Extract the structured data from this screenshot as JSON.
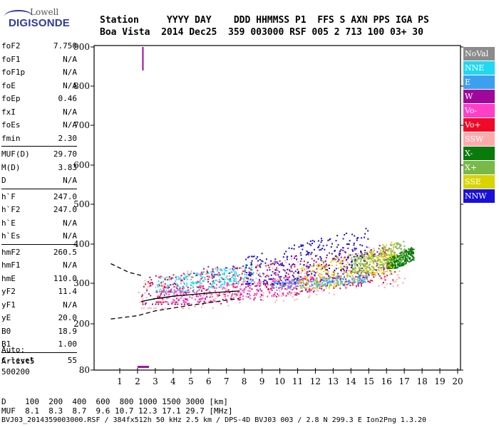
{
  "logo": {
    "line1": "Lowell",
    "line2": "DIGISONDE"
  },
  "header": {
    "line1": "Station     YYYY DAY    DDD HHMMSS P1  FFS S AXN PPS IGA PS",
    "line2": "Boa Vista  2014 Dec25  359 003000 RSF 005 2 713 100 03+ 30"
  },
  "params": {
    "group1": [
      {
        "name": "foF2",
        "value": "7.750"
      },
      {
        "name": "foF1",
        "value": "N/A"
      },
      {
        "name": "foF1p",
        "value": "N/A"
      },
      {
        "name": "foE",
        "value": "N/A"
      },
      {
        "name": "foEp",
        "value": "0.46"
      },
      {
        "name": "fxI",
        "value": "N/A"
      },
      {
        "name": "foEs",
        "value": "N/A"
      },
      {
        "name": "fmin",
        "value": "2.30"
      }
    ],
    "group2": [
      {
        "name": "MUF(D)",
        "value": "29.70"
      },
      {
        "name": "M(D)",
        "value": "3.83"
      },
      {
        "name": "D",
        "value": "N/A"
      }
    ],
    "group3": [
      {
        "name": "h`F",
        "value": "247.0"
      },
      {
        "name": "h`F2",
        "value": "247.0"
      },
      {
        "name": "h`E",
        "value": "N/A"
      },
      {
        "name": "h`Es",
        "value": "N/A"
      }
    ],
    "group4": [
      {
        "name": "hmF2",
        "value": "260.5"
      },
      {
        "name": "hmF1",
        "value": "N/A"
      },
      {
        "name": "hmE",
        "value": "110.0"
      },
      {
        "name": "yF2",
        "value": "11.4"
      },
      {
        "name": "yF1",
        "value": "N/A"
      },
      {
        "name": "yE",
        "value": "20.0"
      },
      {
        "name": "B0",
        "value": "18.9"
      },
      {
        "name": "B1",
        "value": "1.00"
      }
    ],
    "group5": [
      {
        "name": "C-level",
        "value": "55"
      }
    ]
  },
  "auto": {
    "line1": "Auto:",
    "line2": "Artist5",
    "line3": "500200"
  },
  "legend": [
    {
      "label": "NoVal",
      "color": "#8c8c8c"
    },
    {
      "label": "NNE",
      "color": "#22d8f0"
    },
    {
      "label": "E",
      "color": "#3d9ff0"
    },
    {
      "label": "W",
      "color": "#a0089c"
    },
    {
      "label": "Vo-",
      "color": "#ff3fc8"
    },
    {
      "label": "Vo+",
      "color": "#f00a28"
    },
    {
      "label": "SSW",
      "color": "#ffaaaa"
    },
    {
      "label": "X-",
      "color": "#0a7a0a"
    },
    {
      "label": "X+",
      "color": "#7ab84a"
    },
    {
      "label": "SSE",
      "color": "#d8d400"
    },
    {
      "label": "NNW",
      "color": "#1a10d8"
    }
  ],
  "footer": {
    "line1": "D    100  200  400  600  800 1000 1500 3000 [km]",
    "line2": "MUF  8.1  8.3  8.7  9.6 10.7 12.3 17.1 29.7 [MHz]",
    "line3": "BVJ03_2014359003000.RSF / 384fx512h 50 kHz 2.5 km / DPS-4D BVJ03 003 / 2.8 N 299.3 E Ion2Png 1.3.20"
  },
  "chart_data": {
    "type": "scatter",
    "xlim": [
      0.5,
      20
    ],
    "ylim": [
      80,
      900
    ],
    "x_ticks": [
      "1",
      "2",
      "3",
      "4",
      "5",
      "6",
      "7",
      "8",
      "9",
      "10",
      "11",
      "12",
      "13",
      "14",
      "15",
      "16",
      "17",
      "18",
      "19",
      "20"
    ],
    "y_ticks": [
      "80",
      "200",
      "300",
      "400",
      "500",
      "600",
      "700",
      "800",
      "900"
    ],
    "y_tick_values": [
      80,
      200,
      300,
      400,
      500,
      600,
      700,
      800,
      900
    ],
    "series": [
      {
        "name": "NNE",
        "color": "#22d8f0",
        "x_range": [
          3.0,
          8.5
        ],
        "y_range": [
          280,
          360
        ]
      },
      {
        "name": "E",
        "color": "#3d9ff0",
        "x_range": [
          9.5,
          15.0
        ],
        "y_range": [
          290,
          330
        ]
      },
      {
        "name": "W",
        "color": "#a0089c",
        "x_range": [
          2.2,
          16.0
        ],
        "y_range": [
          250,
          420
        ]
      },
      {
        "name": "Vo-",
        "color": "#ff3fc8",
        "x_range": [
          3.0,
          12.0
        ],
        "y_range": [
          255,
          330
        ]
      },
      {
        "name": "Vo+",
        "color": "#f00a28",
        "x_range": [
          2.2,
          16.5
        ],
        "y_range": [
          255,
          400
        ]
      },
      {
        "name": "SSW",
        "color": "#ffaaaa",
        "x_range": [
          2.0,
          17.0
        ],
        "y_range": [
          240,
          420
        ]
      },
      {
        "name": "X-",
        "color": "#0a7a0a",
        "x_range": [
          16.0,
          17.5
        ],
        "y_range": [
          340,
          400
        ]
      },
      {
        "name": "X+",
        "color": "#7ab84a",
        "x_range": [
          14.0,
          17.0
        ],
        "y_range": [
          330,
          420
        ]
      },
      {
        "name": "SSE",
        "color": "#d8d400",
        "x_range": [
          11.0,
          16.5
        ],
        "y_range": [
          290,
          420
        ]
      },
      {
        "name": "NNW",
        "color": "#1a10d8",
        "x_range": [
          8.0,
          15.0
        ],
        "y_range": [
          300,
          460
        ]
      }
    ],
    "profile_curve": [
      [
        2.2,
        255
      ],
      [
        3.0,
        262
      ],
      [
        4.0,
        268
      ],
      [
        5.0,
        272
      ],
      [
        6.0,
        276
      ],
      [
        7.0,
        279
      ],
      [
        7.75,
        281
      ]
    ],
    "profile_lower": [
      [
        0.5,
        212
      ],
      [
        2.0,
        220
      ],
      [
        3.0,
        232
      ],
      [
        5.0,
        246
      ],
      [
        7.0,
        258
      ],
      [
        7.7,
        262
      ]
    ],
    "dashed_left": [
      [
        0.5,
        350
      ],
      [
        1.5,
        328
      ],
      [
        2.2,
        320
      ]
    ],
    "magenta_spike": {
      "x": 2.3,
      "y_range": [
        840,
        900
      ]
    },
    "bottom_marks": {
      "x_range": [
        2.0,
        2.6
      ],
      "y": 80
    }
  }
}
